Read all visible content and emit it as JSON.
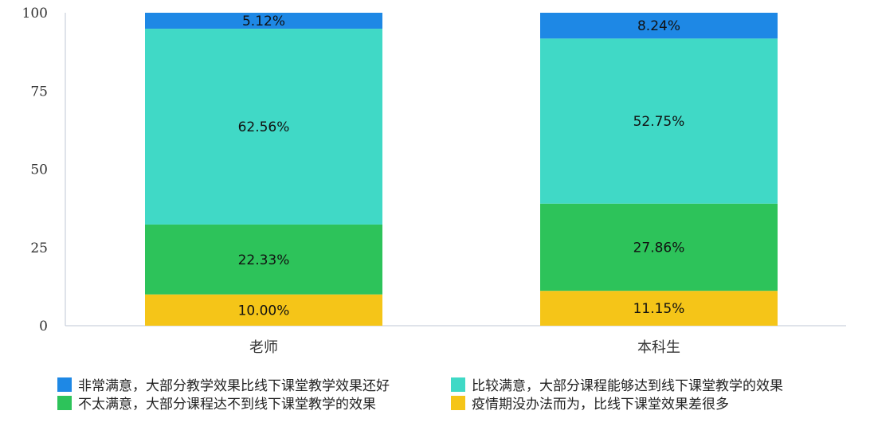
{
  "chart_data": {
    "type": "bar",
    "stacked": true,
    "categories": [
      "老师",
      "本科生"
    ],
    "series": [
      {
        "name": "疫情期没办法而为，比线下课堂效果差很多",
        "color": "#F5C518",
        "values": [
          10.0,
          11.15
        ],
        "labels": [
          "10.00%",
          "11.15%"
        ]
      },
      {
        "name": "不太满意，大部分课程达不到线下课堂教学的效果",
        "color": "#2DC35A",
        "values": [
          22.33,
          27.86
        ],
        "labels": [
          "22.33%",
          "27.86%"
        ]
      },
      {
        "name": "比较满意，大部分课程能够达到线下课堂教学的效果",
        "color": "#40D9C6",
        "values": [
          62.56,
          52.75
        ],
        "labels": [
          "62.56%",
          "52.75%"
        ]
      },
      {
        "name": "非常满意，大部分教学效果比线下课堂教学效果还好",
        "color": "#1E88E5",
        "values": [
          5.12,
          8.24
        ],
        "labels": [
          "5.12%",
          "8.24%"
        ]
      }
    ],
    "ylim": [
      0,
      100
    ],
    "yticks": [
      "0",
      "25",
      "50",
      "75",
      "100"
    ],
    "grid": false,
    "legend": {
      "position": "bottom",
      "order": [
        3,
        2,
        1,
        0
      ]
    }
  }
}
